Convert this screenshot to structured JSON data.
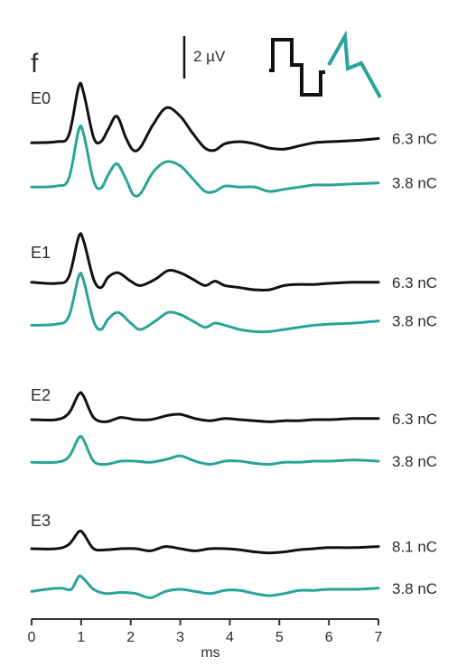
{
  "figure": {
    "panel_letter": "f",
    "scale_bar_label": "2 µV",
    "colors": {
      "black_trace": "#111111",
      "teal_trace": "#2aa39a",
      "axis": "#333333"
    },
    "stimulus_icons": [
      "biphasic-square-pulse-icon",
      "sawtooth-pulse-icon"
    ]
  },
  "chart_data": {
    "type": "line",
    "xlabel": "ms",
    "xlim": [
      0,
      7
    ],
    "x_ticks": [
      "0",
      "1",
      "2",
      "3",
      "4",
      "5",
      "6",
      "7"
    ],
    "grid": false,
    "scale_bar": {
      "label": "2 µV",
      "value": 2,
      "unit": "µV"
    },
    "groups": [
      {
        "label": "E0",
        "series": [
          {
            "color": "#111111",
            "charge_label": "6.3 nC",
            "points": [
              [
                0,
                -0.05
              ],
              [
                0.5,
                0.0
              ],
              [
                0.75,
                0.3
              ],
              [
                0.95,
                2.6
              ],
              [
                1.05,
                2.3
              ],
              [
                1.25,
                0.2
              ],
              [
                1.4,
                0.0
              ],
              [
                1.55,
                0.6
              ],
              [
                1.72,
                1.2
              ],
              [
                1.9,
                0.2
              ],
              [
                2.05,
                -0.4
              ],
              [
                2.2,
                -0.25
              ],
              [
                2.45,
                0.8
              ],
              [
                2.72,
                1.6
              ],
              [
                3.0,
                1.2
              ],
              [
                3.25,
                0.4
              ],
              [
                3.5,
                -0.3
              ],
              [
                3.7,
                -0.4
              ],
              [
                3.9,
                -0.1
              ],
              [
                4.2,
                0.0
              ],
              [
                4.5,
                -0.1
              ],
              [
                4.8,
                -0.3
              ],
              [
                5.1,
                -0.35
              ],
              [
                5.4,
                -0.2
              ],
              [
                5.7,
                -0.05
              ],
              [
                6.0,
                0.0
              ],
              [
                6.5,
                0.05
              ],
              [
                7.0,
                0.15
              ]
            ]
          },
          {
            "color": "#2aa39a",
            "charge_label": "3.8 nC",
            "points": [
              [
                0,
                -0.1
              ],
              [
                0.5,
                -0.05
              ],
              [
                0.75,
                0.3
              ],
              [
                0.95,
                2.6
              ],
              [
                1.05,
                2.4
              ],
              [
                1.25,
                0.2
              ],
              [
                1.4,
                -0.15
              ],
              [
                1.55,
                0.5
              ],
              [
                1.72,
                1.0
              ],
              [
                1.9,
                0.3
              ],
              [
                2.05,
                -0.45
              ],
              [
                2.2,
                -0.4
              ],
              [
                2.45,
                0.6
              ],
              [
                2.72,
                1.1
              ],
              [
                3.0,
                0.9
              ],
              [
                3.25,
                0.3
              ],
              [
                3.5,
                -0.3
              ],
              [
                3.7,
                -0.3
              ],
              [
                3.9,
                -0.05
              ],
              [
                4.2,
                -0.1
              ],
              [
                4.5,
                -0.1
              ],
              [
                4.8,
                -0.3
              ],
              [
                5.1,
                -0.2
              ],
              [
                5.4,
                -0.1
              ],
              [
                5.7,
                0.0
              ],
              [
                6.0,
                0.0
              ],
              [
                6.5,
                0.05
              ],
              [
                7.0,
                0.1
              ]
            ]
          }
        ]
      },
      {
        "label": "E1",
        "series": [
          {
            "color": "#111111",
            "charge_label": "6.3 nC",
            "points": [
              [
                0,
                0.05
              ],
              [
                0.5,
                0.0
              ],
              [
                0.75,
                0.3
              ],
              [
                0.95,
                2.2
              ],
              [
                1.05,
                2.0
              ],
              [
                1.25,
                0.2
              ],
              [
                1.4,
                -0.2
              ],
              [
                1.55,
                0.3
              ],
              [
                1.75,
                0.5
              ],
              [
                2.0,
                0.1
              ],
              [
                2.2,
                -0.1
              ],
              [
                2.5,
                0.2
              ],
              [
                2.75,
                0.6
              ],
              [
                3.0,
                0.5
              ],
              [
                3.25,
                0.2
              ],
              [
                3.5,
                -0.1
              ],
              [
                3.7,
                0.1
              ],
              [
                3.9,
                -0.1
              ],
              [
                4.2,
                -0.2
              ],
              [
                4.5,
                -0.3
              ],
              [
                4.8,
                -0.3
              ],
              [
                5.1,
                -0.1
              ],
              [
                5.4,
                -0.05
              ],
              [
                5.7,
                -0.05
              ],
              [
                6.0,
                0.0
              ],
              [
                6.5,
                0.05
              ],
              [
                7.0,
                0.05
              ]
            ]
          },
          {
            "color": "#2aa39a",
            "charge_label": "3.8 nC",
            "points": [
              [
                0,
                -0.1
              ],
              [
                0.5,
                -0.05
              ],
              [
                0.75,
                0.3
              ],
              [
                0.95,
                2.2
              ],
              [
                1.05,
                2.0
              ],
              [
                1.25,
                0.1
              ],
              [
                1.4,
                -0.3
              ],
              [
                1.55,
                0.2
              ],
              [
                1.75,
                0.5
              ],
              [
                2.0,
                0.0
              ],
              [
                2.2,
                -0.3
              ],
              [
                2.5,
                0.1
              ],
              [
                2.75,
                0.5
              ],
              [
                3.0,
                0.4
              ],
              [
                3.25,
                0.1
              ],
              [
                3.5,
                -0.2
              ],
              [
                3.7,
                0.0
              ],
              [
                3.9,
                -0.1
              ],
              [
                4.2,
                -0.3
              ],
              [
                4.5,
                -0.4
              ],
              [
                4.8,
                -0.4
              ],
              [
                5.1,
                -0.3
              ],
              [
                5.4,
                -0.2
              ],
              [
                5.7,
                -0.1
              ],
              [
                6.0,
                -0.05
              ],
              [
                6.5,
                0.0
              ],
              [
                7.0,
                0.1
              ]
            ]
          }
        ]
      },
      {
        "label": "E2",
        "series": [
          {
            "color": "#111111",
            "charge_label": "6.3 nC",
            "points": [
              [
                0,
                0.0
              ],
              [
                0.5,
                0.0
              ],
              [
                0.75,
                0.3
              ],
              [
                0.95,
                1.2
              ],
              [
                1.05,
                1.1
              ],
              [
                1.25,
                0.1
              ],
              [
                1.5,
                -0.1
              ],
              [
                1.8,
                0.1
              ],
              [
                2.1,
                0.0
              ],
              [
                2.4,
                0.0
              ],
              [
                2.75,
                0.2
              ],
              [
                3.0,
                0.25
              ],
              [
                3.3,
                0.05
              ],
              [
                3.6,
                -0.05
              ],
              [
                3.9,
                0.05
              ],
              [
                4.2,
                0.0
              ],
              [
                4.5,
                -0.05
              ],
              [
                4.8,
                -0.1
              ],
              [
                5.1,
                -0.05
              ],
              [
                5.4,
                -0.05
              ],
              [
                5.7,
                0.0
              ],
              [
                6.0,
                0.0
              ],
              [
                6.5,
                0.05
              ],
              [
                7.0,
                0.05
              ]
            ]
          },
          {
            "color": "#2aa39a",
            "charge_label": "3.8 nC",
            "points": [
              [
                0,
                -0.05
              ],
              [
                0.5,
                -0.05
              ],
              [
                0.75,
                0.2
              ],
              [
                0.95,
                1.1
              ],
              [
                1.05,
                1.0
              ],
              [
                1.25,
                0.0
              ],
              [
                1.5,
                -0.15
              ],
              [
                1.8,
                0.0
              ],
              [
                2.1,
                0.0
              ],
              [
                2.4,
                -0.05
              ],
              [
                2.75,
                0.1
              ],
              [
                3.0,
                0.25
              ],
              [
                3.3,
                0.0
              ],
              [
                3.6,
                -0.15
              ],
              [
                3.9,
                0.0
              ],
              [
                4.2,
                0.0
              ],
              [
                4.5,
                -0.1
              ],
              [
                4.8,
                -0.15
              ],
              [
                5.1,
                -0.05
              ],
              [
                5.4,
                -0.05
              ],
              [
                5.7,
                0.0
              ],
              [
                6.0,
                0.0
              ],
              [
                6.5,
                0.05
              ],
              [
                7.0,
                0.0
              ]
            ]
          }
        ]
      },
      {
        "label": "E3",
        "series": [
          {
            "color": "#111111",
            "charge_label": "8.1 nC",
            "points": [
              [
                0,
                0.0
              ],
              [
                0.5,
                0.0
              ],
              [
                0.75,
                0.2
              ],
              [
                0.95,
                0.8
              ],
              [
                1.05,
                0.7
              ],
              [
                1.25,
                0.0
              ],
              [
                1.5,
                -0.05
              ],
              [
                1.8,
                0.0
              ],
              [
                2.1,
                0.0
              ],
              [
                2.4,
                -0.1
              ],
              [
                2.7,
                0.1
              ],
              [
                3.0,
                0.0
              ],
              [
                3.3,
                -0.1
              ],
              [
                3.6,
                0.0
              ],
              [
                3.9,
                0.0
              ],
              [
                4.2,
                -0.05
              ],
              [
                4.5,
                -0.15
              ],
              [
                4.8,
                -0.2
              ],
              [
                5.1,
                -0.15
              ],
              [
                5.4,
                -0.05
              ],
              [
                5.7,
                0.0
              ],
              [
                6.0,
                0.05
              ],
              [
                6.5,
                0.05
              ],
              [
                7.0,
                0.1
              ]
            ]
          },
          {
            "color": "#2aa39a",
            "charge_label": "3.8 nC",
            "points": [
              [
                0,
                -0.1
              ],
              [
                0.3,
                0.0
              ],
              [
                0.6,
                0.05
              ],
              [
                0.8,
                0.0
              ],
              [
                0.95,
                0.6
              ],
              [
                1.05,
                0.5
              ],
              [
                1.25,
                0.0
              ],
              [
                1.5,
                -0.2
              ],
              [
                1.8,
                -0.15
              ],
              [
                2.1,
                -0.2
              ],
              [
                2.4,
                -0.4
              ],
              [
                2.7,
                -0.1
              ],
              [
                3.0,
                0.0
              ],
              [
                3.3,
                -0.1
              ],
              [
                3.6,
                -0.2
              ],
              [
                3.9,
                -0.05
              ],
              [
                4.2,
                -0.05
              ],
              [
                4.5,
                -0.2
              ],
              [
                4.8,
                -0.3
              ],
              [
                5.1,
                -0.2
              ],
              [
                5.4,
                -0.05
              ],
              [
                5.7,
                -0.05
              ],
              [
                6.0,
                0.0
              ],
              [
                6.5,
                0.0
              ],
              [
                7.0,
                0.05
              ]
            ]
          }
        ]
      }
    ]
  }
}
